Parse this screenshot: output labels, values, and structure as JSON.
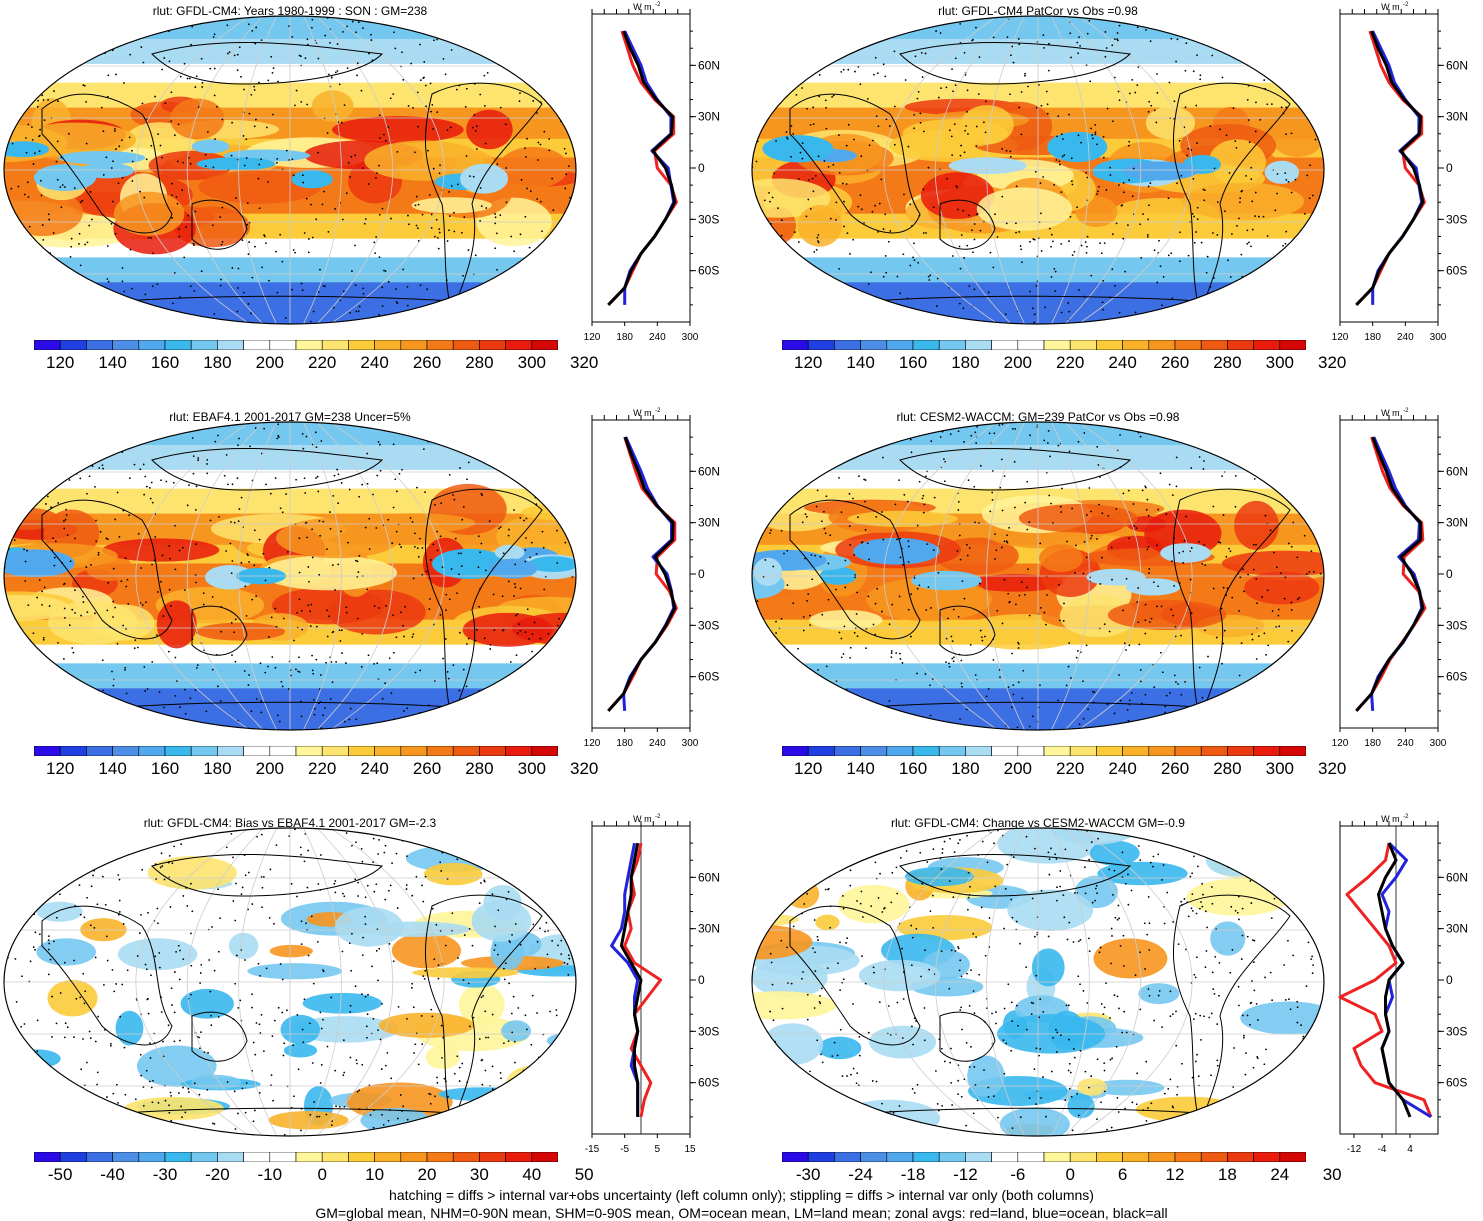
{
  "footer": {
    "line1": "hatching = diffs > internal var+obs uncertainty (left column only); stippling = diffs > internal var only (both columns)",
    "line2": "GM=global mean, NHM=0-90N mean, SHM=0-90S mean, OM=ocean mean, LM=land mean; zonal avgs: red=land, blue=ocean, black=all"
  },
  "colors": {
    "land": "#ee2222",
    "ocean": "#2222dd",
    "all": "#000000",
    "abs_scale": [
      "#2a0ae6",
      "#1f3fe0",
      "#3d6fe4",
      "#4d8ee6",
      "#52a8ec",
      "#39b8ee",
      "#74c8ef",
      "#a9dbf3",
      "#ffffff",
      "#ffffff",
      "#fff59a",
      "#fde46e",
      "#fbcb3a",
      "#f9b12a",
      "#f7961f",
      "#f47a18",
      "#ef5a12",
      "#ec3a10",
      "#e81b0c",
      "#d40606"
    ],
    "diff_scale": [
      "#2a0ae6",
      "#1f3fe0",
      "#3d6fe4",
      "#4d8ee6",
      "#52a8ec",
      "#39b8ee",
      "#74c8ef",
      "#a9dbf3",
      "#ffffff",
      "#ffffff",
      "#fff59a",
      "#fde46e",
      "#fbcb3a",
      "#f9b12a",
      "#f7961f",
      "#f47a18",
      "#ef5a12",
      "#ec3a10",
      "#e81b0c",
      "#d40606"
    ]
  },
  "panels": [
    {
      "id": "p1",
      "title": "rlut: GFDL-CM4: Years 1980-1999 : SON : GM=238",
      "field": "abs",
      "cbar_labels": [
        "120",
        "140",
        "160",
        "180",
        "200",
        "220",
        "240",
        "260",
        "280",
        "300",
        "320"
      ],
      "zonal": {
        "unit": "W m",
        "unit_sup": "-2",
        "xticks": [
          "120",
          "180",
          "240",
          "300"
        ],
        "xlim": [
          120,
          300
        ],
        "lat_labels": [
          "60N",
          "30N",
          "0",
          "30S",
          "60S"
        ]
      }
    },
    {
      "id": "p2",
      "title": "rlut: GFDL-CM4 PatCor vs Obs =0.98",
      "field": "abs",
      "cbar_labels": [
        "120",
        "140",
        "160",
        "180",
        "200",
        "220",
        "240",
        "260",
        "280",
        "300",
        "320"
      ],
      "zonal": {
        "unit": "W m",
        "unit_sup": "-2",
        "xticks": [
          "120",
          "180",
          "240",
          "300"
        ],
        "xlim": [
          120,
          300
        ],
        "lat_labels": [
          "60N",
          "30N",
          "0",
          "30S",
          "60S"
        ]
      }
    },
    {
      "id": "p3",
      "title": "rlut: EBAF4.1 2001-2017 GM=238 Uncer=5%",
      "field": "abs",
      "cbar_labels": [
        "120",
        "140",
        "160",
        "180",
        "200",
        "220",
        "240",
        "260",
        "280",
        "300",
        "320"
      ],
      "zonal": {
        "unit": "W m",
        "unit_sup": "-2",
        "xticks": [
          "120",
          "180",
          "240",
          "300"
        ],
        "xlim": [
          120,
          300
        ],
        "lat_labels": [
          "60N",
          "30N",
          "0",
          "30S",
          "60S"
        ]
      }
    },
    {
      "id": "p4",
      "title": "rlut: CESM2-WACCM: GM=239 PatCor vs Obs =0.98",
      "field": "abs",
      "cbar_labels": [
        "120",
        "140",
        "160",
        "180",
        "200",
        "220",
        "240",
        "260",
        "280",
        "300",
        "320"
      ],
      "zonal": {
        "unit": "W m",
        "unit_sup": "-2",
        "xticks": [
          "120",
          "180",
          "240",
          "300"
        ],
        "xlim": [
          120,
          300
        ],
        "lat_labels": [
          "60N",
          "30N",
          "0",
          "30S",
          "60S"
        ]
      }
    },
    {
      "id": "p5",
      "title": "rlut: GFDL-CM4: Bias vs EBAF4.1 2001-2017  GM=-2.3",
      "field": "diff",
      "cbar_labels": [
        "-50",
        "-40",
        "-30",
        "-20",
        "-10",
        "0",
        "10",
        "20",
        "30",
        "40",
        "50"
      ],
      "zonal": {
        "unit": "W m",
        "unit_sup": "-2",
        "xticks": [
          "-15",
          "-5",
          "5",
          "15"
        ],
        "xlim": [
          -15,
          15
        ],
        "lat_labels": [
          "60N",
          "30N",
          "0",
          "30S",
          "60S"
        ]
      }
    },
    {
      "id": "p6",
      "title": "rlut: GFDL-CM4: Change vs CESM2-WACCM GM=-0.9",
      "field": "diff",
      "cbar_labels": [
        "-30",
        "-24",
        "-18",
        "-12",
        "-6",
        "0",
        "6",
        "12",
        "18",
        "24",
        "30"
      ],
      "zonal": {
        "unit": "W m",
        "unit_sup": "-2",
        "xticks": [
          "-12",
          "-4",
          "4"
        ],
        "xlim": [
          -16,
          12
        ],
        "lat_labels": [
          "60N",
          "30N",
          "0",
          "30S",
          "60S"
        ]
      }
    }
  ],
  "chart_data": [
    {
      "type": "line",
      "title": "rlut: GFDL-CM4: Years 1980-1999 : SON : GM=238",
      "xlabel": "W m-2",
      "xlim": [
        120,
        300
      ],
      "ylim": [
        -90,
        90
      ],
      "y": [
        80,
        70,
        60,
        50,
        40,
        30,
        20,
        10,
        0,
        -10,
        -20,
        -30,
        -40,
        -50,
        -60,
        -70,
        -80
      ],
      "series": [
        {
          "color": "land",
          "values": [
            175,
            185,
            195,
            210,
            235,
            270,
            270,
            235,
            240,
            265,
            275,
            255,
            235,
            210,
            195,
            180,
            150
          ]
        },
        {
          "color": "ocean",
          "values": [
            180,
            195,
            210,
            220,
            240,
            265,
            265,
            230,
            260,
            265,
            270,
            255,
            235,
            210,
            190,
            180,
            180
          ]
        },
        {
          "color": "all",
          "values": [
            178,
            190,
            205,
            215,
            238,
            268,
            266,
            232,
            255,
            266,
            272,
            255,
            235,
            210,
            192,
            180,
            150
          ]
        }
      ]
    },
    {
      "type": "line",
      "title": "rlut: GFDL-CM4 PatCor vs Obs =0.98",
      "xlabel": "W m-2",
      "xlim": [
        120,
        300
      ],
      "ylim": [
        -90,
        90
      ],
      "y": [
        80,
        70,
        60,
        50,
        40,
        30,
        20,
        10,
        0,
        -10,
        -20,
        -30,
        -40,
        -50,
        -60,
        -70,
        -80
      ],
      "series": [
        {
          "color": "land",
          "values": [
            175,
            185,
            195,
            210,
            235,
            270,
            270,
            235,
            240,
            265,
            275,
            255,
            235,
            210,
            195,
            180,
            150
          ]
        },
        {
          "color": "ocean",
          "values": [
            180,
            195,
            210,
            220,
            240,
            265,
            265,
            230,
            260,
            265,
            270,
            255,
            235,
            210,
            190,
            180,
            180
          ]
        },
        {
          "color": "all",
          "values": [
            178,
            190,
            205,
            215,
            238,
            268,
            266,
            232,
            255,
            266,
            272,
            255,
            235,
            210,
            192,
            180,
            150
          ]
        }
      ]
    },
    {
      "type": "line",
      "title": "rlut: EBAF4.1 2001-2017 GM=238 Uncer=5%",
      "xlabel": "W m-2",
      "xlim": [
        120,
        300
      ],
      "ylim": [
        -90,
        90
      ],
      "y": [
        80,
        70,
        60,
        50,
        40,
        30,
        20,
        10,
        0,
        -10,
        -20,
        -30,
        -40,
        -50,
        -60,
        -70,
        -80
      ],
      "series": [
        {
          "color": "land",
          "values": [
            180,
            190,
            200,
            212,
            238,
            272,
            272,
            240,
            238,
            262,
            275,
            258,
            236,
            210,
            195,
            178,
            150
          ]
        },
        {
          "color": "ocean",
          "values": [
            182,
            196,
            210,
            222,
            240,
            266,
            266,
            232,
            258,
            266,
            270,
            255,
            236,
            210,
            190,
            178,
            180
          ]
        },
        {
          "color": "all",
          "values": [
            181,
            192,
            205,
            216,
            239,
            269,
            268,
            236,
            254,
            265,
            272,
            256,
            236,
            210,
            192,
            178,
            150
          ]
        }
      ]
    },
    {
      "type": "line",
      "title": "rlut: CESM2-WACCM: GM=239 PatCor vs Obs =0.98",
      "xlabel": "W m-2",
      "xlim": [
        120,
        300
      ],
      "ylim": [
        -90,
        90
      ],
      "y": [
        80,
        70,
        60,
        50,
        40,
        30,
        20,
        10,
        0,
        -10,
        -20,
        -30,
        -40,
        -50,
        -60,
        -70,
        -80
      ],
      "series": [
        {
          "color": "land",
          "values": [
            178,
            188,
            198,
            212,
            236,
            270,
            272,
            238,
            236,
            264,
            276,
            256,
            234,
            212,
            196,
            178,
            150
          ]
        },
        {
          "color": "ocean",
          "values": [
            182,
            196,
            210,
            222,
            240,
            266,
            264,
            228,
            256,
            266,
            270,
            255,
            236,
            210,
            190,
            178,
            180
          ]
        },
        {
          "color": "all",
          "values": [
            180,
            192,
            205,
            216,
            238,
            268,
            268,
            232,
            252,
            266,
            272,
            255,
            235,
            210,
            192,
            178,
            150
          ]
        }
      ]
    },
    {
      "type": "line",
      "title": "rlut: GFDL-CM4: Bias vs EBAF4.1 2001-2017  GM=-2.3",
      "xlabel": "W m-2",
      "xlim": [
        -15,
        15
      ],
      "ylim": [
        -90,
        90
      ],
      "y": [
        80,
        70,
        60,
        50,
        40,
        30,
        20,
        10,
        0,
        -10,
        -20,
        -30,
        -40,
        -50,
        -60,
        -70,
        -80
      ],
      "series": [
        {
          "color": "land",
          "values": [
            0,
            -1,
            -3,
            -2,
            -4,
            -3,
            -5,
            -2,
            6,
            2,
            -2,
            -1,
            -3,
            0,
            3,
            1,
            0
          ]
        },
        {
          "color": "ocean",
          "values": [
            -2,
            -3,
            -4,
            -5,
            -5,
            -6,
            -9,
            -4,
            -1,
            -2,
            -2,
            -1,
            -2,
            -3,
            -1,
            -1,
            -1
          ]
        },
        {
          "color": "all",
          "values": [
            -1,
            -2,
            -3,
            -3,
            -4,
            -5,
            -6,
            -3,
            0,
            -1,
            -2,
            -1,
            -2,
            -2,
            -1,
            -1,
            -1
          ]
        }
      ]
    },
    {
      "type": "line",
      "title": "rlut: GFDL-CM4: Change vs CESM2-WACCM GM=-0.9",
      "xlabel": "W m-2",
      "xlim": [
        -16,
        12
      ],
      "ylim": [
        -90,
        90
      ],
      "y": [
        80,
        70,
        60,
        50,
        40,
        30,
        20,
        10,
        0,
        -10,
        -20,
        -30,
        -40,
        -50,
        -60,
        -70,
        -80
      ],
      "series": [
        {
          "color": "land",
          "values": [
            -2,
            -3,
            -8,
            -14,
            -10,
            -6,
            -2,
            0,
            -6,
            -16,
            -6,
            -4,
            -12,
            -10,
            -6,
            8,
            10
          ]
        },
        {
          "color": "ocean",
          "values": [
            -2,
            3,
            0,
            -4,
            -2,
            -3,
            -1,
            2,
            -2,
            -1,
            -3,
            -2,
            -4,
            -3,
            -2,
            2,
            10
          ]
        },
        {
          "color": "all",
          "values": [
            -2,
            0,
            -3,
            -5,
            -4,
            -3,
            -1,
            2,
            -2,
            -3,
            -3,
            -2,
            -4,
            -3,
            -2,
            2,
            4
          ]
        }
      ]
    }
  ]
}
